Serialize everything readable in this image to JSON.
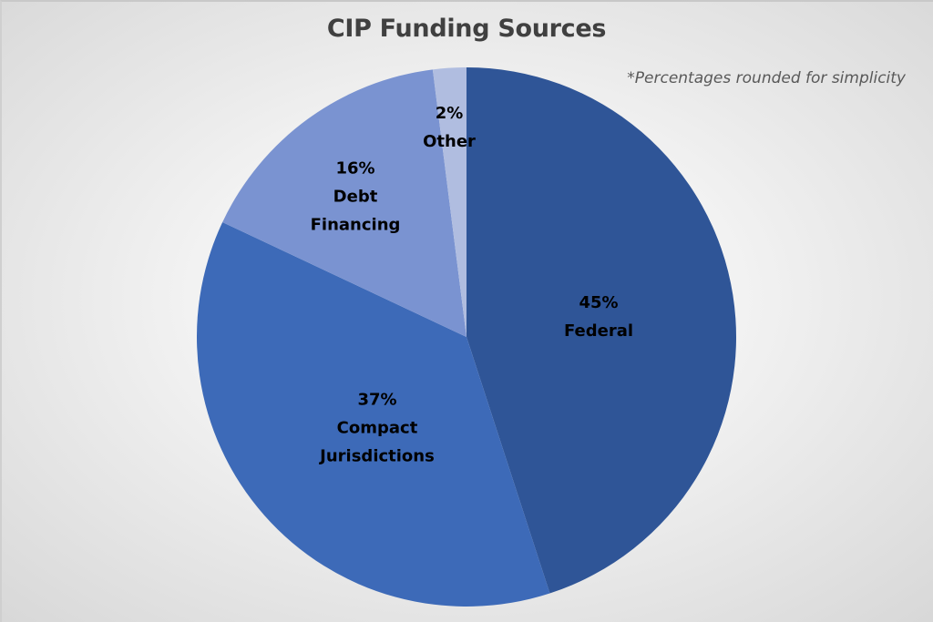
{
  "chart_data": {
    "type": "pie",
    "title": "CIP Funding Sources",
    "annotation": "*Percentages rounded for simplicity",
    "start_angle": "12 o'clock, clockwise",
    "slices": [
      {
        "label": "Federal",
        "value": 45,
        "display": "45%",
        "color": "#2f5597"
      },
      {
        "label": "Compact Jurisdictions",
        "value": 37,
        "display": "37%",
        "color": "#3d6ab8"
      },
      {
        "label": "Debt Financing",
        "value": 16,
        "display": "16%",
        "color": "#7a93d1"
      },
      {
        "label": "Other",
        "value": 2,
        "display": "2%",
        "color": "#b0bde0"
      }
    ],
    "legend": "none (data labels on slices)"
  },
  "labels": {
    "federal": {
      "pct": "45%",
      "line1": "Federal"
    },
    "compact": {
      "pct": "37%",
      "line1": "Compact",
      "line2": "Jurisdictions"
    },
    "debt": {
      "pct": "16%",
      "line1": "Debt",
      "line2": "Financing"
    },
    "other": {
      "pct": "2%",
      "line1": "Other"
    }
  }
}
